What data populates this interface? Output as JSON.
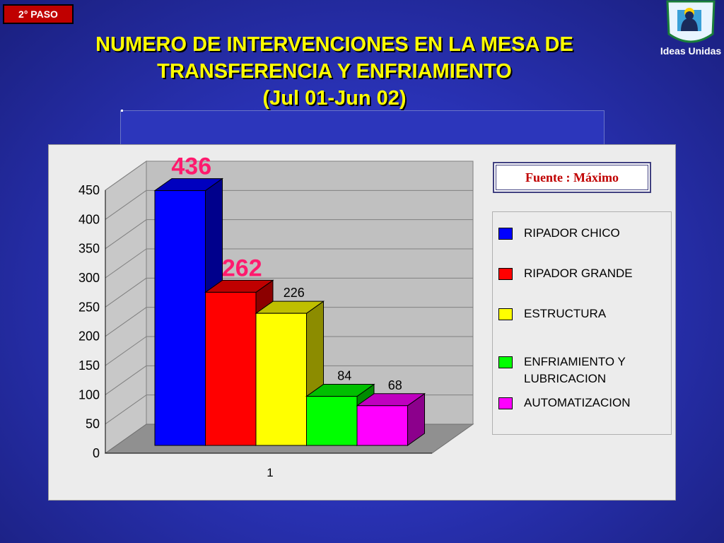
{
  "step_badge": "2° PASO",
  "title": {
    "line1": "NUMERO DE INTERVENCIONES EN LA MESA DE",
    "line2": "TRANSFERENCIA Y ENFRIAMIENTO",
    "line3": "(Jul 01-Jun 02)"
  },
  "logo": {
    "text": "Ideas Unidas",
    "icon": "ideas-unidas-logo"
  },
  "source_label": "Fuente : Máximo",
  "chart_data": {
    "type": "bar",
    "style": "3d-clustered",
    "categories": [
      "1"
    ],
    "series": [
      {
        "name": "RIPADOR CHICO",
        "values": [
          436
        ],
        "color": "#0000ff",
        "data_label": "436"
      },
      {
        "name": "RIPADOR GRANDE",
        "values": [
          262
        ],
        "color": "#ff0000",
        "data_label": "262"
      },
      {
        "name": "ESTRUCTURA",
        "values": [
          226
        ],
        "color": "#ffff00",
        "data_label": "226"
      },
      {
        "name": "ENFRIAMIENTO Y LUBRICACION",
        "values": [
          84
        ],
        "color": "#00ff00",
        "data_label": "84"
      },
      {
        "name": "AUTOMATIZACION",
        "values": [
          68
        ],
        "color": "#ff00ff",
        "data_label": "68"
      }
    ],
    "ylim": [
      0,
      450
    ],
    "yticks": [
      "0",
      "50",
      "100",
      "150",
      "200",
      "250",
      "300",
      "350",
      "400",
      "450"
    ],
    "grid": true,
    "legend_position": "right",
    "xlabel": "",
    "ylabel": ""
  }
}
